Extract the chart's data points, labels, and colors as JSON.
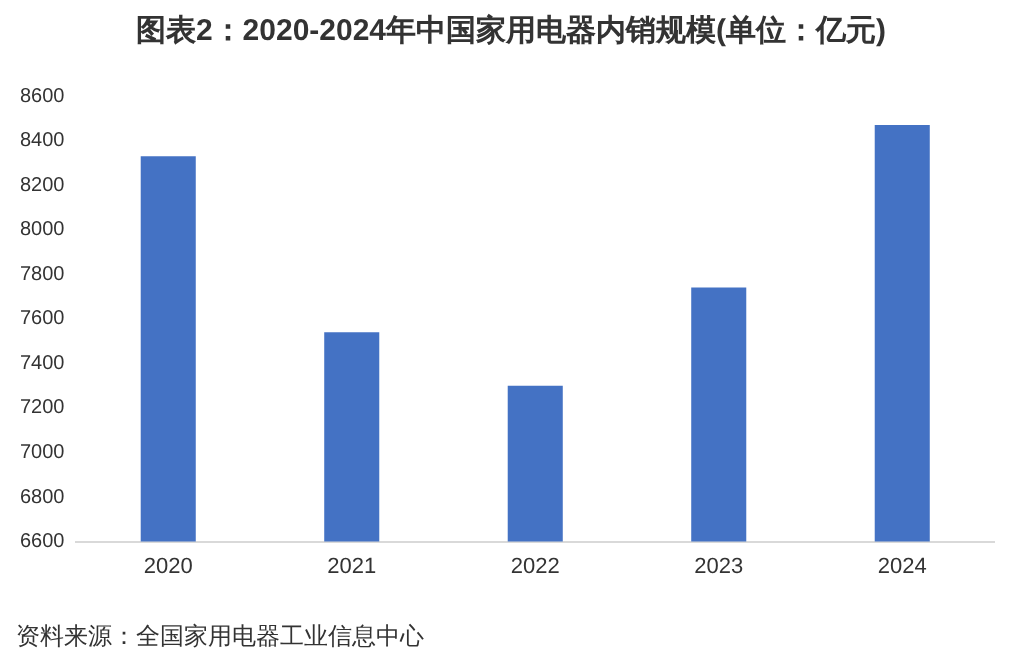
{
  "chart_data": {
    "type": "bar",
    "title": "图表2：2020-2024年中国家用电器内销规模(单位：亿元)",
    "categories": [
      "2020",
      "2021",
      "2022",
      "2023",
      "2024"
    ],
    "values": [
      8330,
      7540,
      7300,
      7740,
      8470
    ],
    "color": "#4472c4",
    "ylim": [
      6600,
      8600
    ],
    "yticks": [
      6600,
      6800,
      7000,
      7200,
      7400,
      7600,
      7800,
      8000,
      8200,
      8400,
      8600
    ],
    "grid": false,
    "legend": false,
    "annotations": [
      "资料来源：全国家用电器工业信息中心"
    ]
  }
}
